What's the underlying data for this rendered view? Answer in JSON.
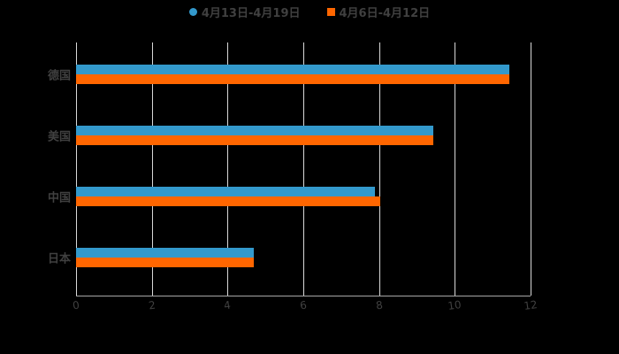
{
  "chart_data": {
    "type": "bar",
    "orientation": "horizontal",
    "categories": [
      "德国",
      "美国",
      "中国",
      "日本"
    ],
    "series": [
      {
        "name": "4月13日-4月19日",
        "color": "#3399cc",
        "values": [
          11.44,
          9.43,
          7.89,
          4.69
        ]
      },
      {
        "name": "4月6日-4月12日",
        "color": "#ff6600",
        "values": [
          11.44,
          9.43,
          8.03,
          4.69
        ]
      }
    ],
    "title": "",
    "xlabel": "",
    "ylabel": "",
    "xlim": [
      0,
      12
    ],
    "x_ticks": [
      "0",
      "2",
      "4",
      "6",
      "8",
      "10",
      "12"
    ],
    "grid": true,
    "legend_position": "top"
  },
  "legend": {
    "s0": "4月13日-4月19日",
    "s1": "4月6日-4月12日"
  }
}
